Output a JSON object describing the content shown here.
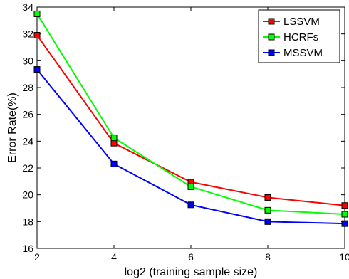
{
  "chart_data": {
    "type": "line",
    "title": "",
    "xlabel": "log2 (training sample size)",
    "ylabel": "Error Rate(%)",
    "xlim": [
      2,
      10
    ],
    "ylim": [
      16,
      34
    ],
    "xticks": [
      2,
      4,
      6,
      8,
      10
    ],
    "yticks": [
      16,
      18,
      20,
      22,
      24,
      26,
      28,
      30,
      32,
      34
    ],
    "grid": false,
    "legend_position": "top-right",
    "x": [
      2,
      4,
      6,
      8,
      10
    ],
    "series": [
      {
        "name": "LSSVM",
        "color": "#ff0000",
        "values": [
          31.9,
          23.85,
          20.95,
          19.8,
          19.2
        ]
      },
      {
        "name": "HCRFs",
        "color": "#00ff00",
        "values": [
          33.5,
          24.25,
          20.6,
          18.85,
          18.55
        ]
      },
      {
        "name": "MSSVM",
        "color": "#0000ff",
        "values": [
          29.35,
          22.3,
          19.25,
          18.0,
          17.85
        ]
      }
    ]
  }
}
